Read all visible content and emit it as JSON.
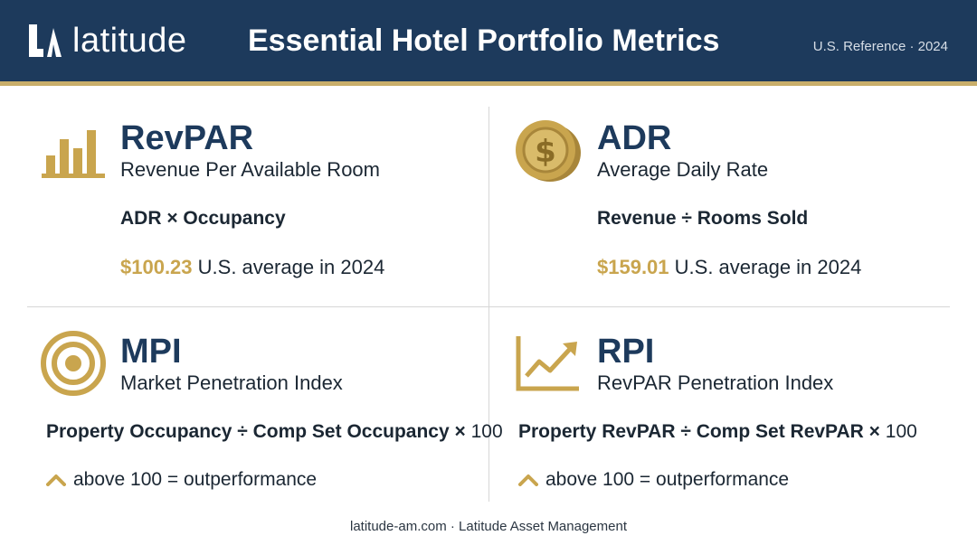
{
  "header": {
    "logo_text": "latitude",
    "title": "Essential Hotel Portfolio Metrics",
    "reference": "U.S. Reference · 2024"
  },
  "colors": {
    "navy": "#1d3a5c",
    "gold": "#c9a54e",
    "gold_rule": "#c9ae6a"
  },
  "metrics": [
    {
      "icon": "bar-chart-icon",
      "name": "RevPAR",
      "full_name": "Revenue Per Available Room",
      "formula": "ADR × Occupancy",
      "stat_value": "$100.23",
      "stat_text": "U.S. average in 2024"
    },
    {
      "icon": "dollar-coin-icon",
      "name": "ADR",
      "full_name": "Average Daily Rate",
      "formula": "Revenue ÷ Rooms Sold",
      "stat_value": "$159.01",
      "stat_text": "U.S. average in 2024"
    },
    {
      "icon": "target-icon",
      "name": "MPI",
      "full_name": "Market Penetration Index",
      "formula": "Property Occupancy ÷ Comp Set Occupancy ×",
      "formula_tail": "100",
      "note_icon": "chevron-up-icon",
      "note": "above 100 = outperformance"
    },
    {
      "icon": "trend-up-icon",
      "name": "RPI",
      "full_name": "RevPAR Penetration Index",
      "formula": "Property RevPAR ÷ Comp Set RevPAR ×",
      "formula_tail": "100",
      "note_icon": "chevron-up-icon",
      "note": "above 100 = outperformance"
    }
  ],
  "footer": "latitude-am.com · Latitude Asset Management"
}
